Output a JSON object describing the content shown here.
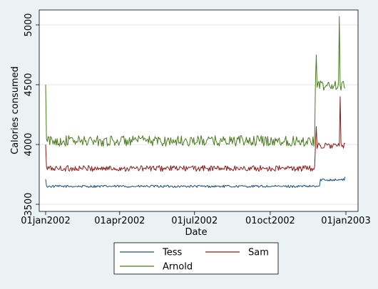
{
  "chart_data": {
    "type": "line",
    "title": "",
    "xlabel": "Date",
    "ylabel": "Calories consumed",
    "xlim": [
      "2002-01-01",
      "2003-01-01"
    ],
    "ylim": [
      3500,
      5000
    ],
    "x_ticks": [
      {
        "date": "2002-01-01",
        "label": "01jan2002"
      },
      {
        "date": "2002-04-01",
        "label": "01apr2002"
      },
      {
        "date": "2002-07-01",
        "label": "01jul2002"
      },
      {
        "date": "2002-10-01",
        "label": "01oct2002"
      },
      {
        "date": "2003-01-01",
        "label": "01jan2003"
      }
    ],
    "y_ticks": [
      {
        "value": 3500,
        "label": "3500"
      },
      {
        "value": 4000,
        "label": "4000"
      },
      {
        "value": 4500,
        "label": "4500"
      },
      {
        "value": 5000,
        "label": "5000"
      }
    ],
    "grid": true,
    "legend_position": "bottom",
    "series": [
      {
        "name": "Tess",
        "color": "#1f4e79",
        "base": 3650,
        "noise": 10,
        "start_value": 3710,
        "shift_date": "2002-12-01",
        "shift_base": 3705,
        "end_date": "2002-12-31",
        "end_value": 3730,
        "spikes": []
      },
      {
        "name": "Sam",
        "color": "#8b1a1a",
        "base": 3800,
        "noise": 25,
        "start_value": 4000,
        "shift_date": "2002-11-25",
        "shift_base": 3990,
        "end_date": "2002-12-31",
        "end_value": 4010,
        "spikes": [
          {
            "date": "2002-11-26",
            "value": 4150
          },
          {
            "date": "2002-12-25",
            "value": 4400
          }
        ]
      },
      {
        "name": "Arnold",
        "color": "#4a7a1e",
        "base": 4030,
        "noise": 45,
        "start_value": 4500,
        "shift_date": "2002-11-25",
        "shift_base": 4490,
        "end_date": "2002-12-31",
        "end_value": 4470,
        "spikes": [
          {
            "date": "2002-11-26",
            "value": 4750
          },
          {
            "date": "2002-12-24",
            "value": 5070
          }
        ]
      }
    ]
  }
}
